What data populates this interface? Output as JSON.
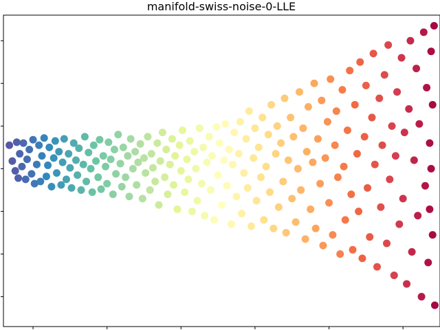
{
  "chart_data": {
    "type": "scatter",
    "title": "manifold-swiss-noise-0-LLE",
    "xlabel": "",
    "ylabel": "",
    "xlim": [
      -0.9,
      5.0
    ],
    "ylim": [
      -3.7,
      3.6
    ],
    "x_ticks": [
      -0.5,
      0.5,
      1.5,
      2.5,
      3.5,
      4.5
    ],
    "y_ticks": [
      -3,
      -2,
      -1,
      0,
      1,
      2,
      3
    ],
    "tick_labels_visible": false,
    "grid": false,
    "colormap": "Spectral",
    "color_stops": [
      "#5e4fa2",
      "#3288bd",
      "#66c2a5",
      "#abdda4",
      "#e6f598",
      "#ffffbf",
      "#fee08b",
      "#fdae61",
      "#f46d43",
      "#d53e4f",
      "#9e0142"
    ],
    "series": [
      {
        "values": [
          [
            -0.82,
            0.55
          ],
          [
            -0.78,
            0.18
          ],
          [
            -0.74,
            -0.05
          ],
          [
            -0.72,
            0.62
          ],
          [
            -0.7,
            -0.22
          ],
          [
            -0.68,
            0.35
          ],
          [
            -0.65,
            0.05
          ],
          [
            -0.63,
            0.6
          ],
          [
            -0.6,
            -0.25
          ],
          [
            -0.58,
            0.22
          ],
          [
            -0.55,
            0.45
          ],
          [
            -0.52,
            -0.12
          ],
          [
            -0.5,
            0.68
          ],
          [
            -0.48,
            -0.35
          ],
          [
            -0.45,
            0.1
          ],
          [
            -0.42,
            0.55
          ],
          [
            -0.4,
            -0.3
          ],
          [
            -0.38,
            0.3
          ],
          [
            -0.35,
            0.72
          ],
          [
            -0.32,
            -0.18
          ],
          [
            -0.3,
            0.08
          ],
          [
            -0.28,
            0.5
          ],
          [
            -0.25,
            -0.42
          ],
          [
            -0.22,
            0.25
          ],
          [
            -0.2,
            0.65
          ],
          [
            -0.18,
            -0.1
          ],
          [
            -0.15,
            0.4
          ],
          [
            -0.12,
            -0.38
          ],
          [
            -0.1,
            0.15
          ],
          [
            -0.08,
            0.7
          ],
          [
            -0.05,
            -0.25
          ],
          [
            -0.02,
            0.35
          ],
          [
            0.0,
            0.02
          ],
          [
            0.02,
            -0.45
          ],
          [
            0.05,
            0.6
          ],
          [
            0.08,
            0.2
          ],
          [
            0.1,
            -0.15
          ],
          [
            0.12,
            0.48
          ],
          [
            0.15,
            -0.5
          ],
          [
            0.18,
            0.1
          ],
          [
            0.2,
            0.75
          ],
          [
            0.22,
            -0.3
          ],
          [
            0.25,
            0.38
          ],
          [
            0.28,
            0.0
          ],
          [
            0.3,
            -0.55
          ],
          [
            0.32,
            0.55
          ],
          [
            0.35,
            0.18
          ],
          [
            0.38,
            -0.2
          ],
          [
            0.4,
            0.68
          ],
          [
            0.42,
            -0.48
          ],
          [
            0.45,
            0.3
          ],
          [
            0.48,
            0.05
          ],
          [
            0.5,
            -0.35
          ],
          [
            0.52,
            0.62
          ],
          [
            0.55,
            0.22
          ],
          [
            0.58,
            -0.6
          ],
          [
            0.6,
            0.45
          ],
          [
            0.62,
            -0.12
          ],
          [
            0.65,
            0.8
          ],
          [
            0.68,
            0.12
          ],
          [
            0.7,
            -0.42
          ],
          [
            0.72,
            0.5
          ],
          [
            0.75,
            -0.2
          ],
          [
            0.78,
            0.3
          ],
          [
            0.8,
            -0.65
          ],
          [
            0.82,
            0.7
          ],
          [
            0.85,
            0.0
          ],
          [
            0.88,
            0.4
          ],
          [
            0.9,
            -0.38
          ],
          [
            0.92,
            0.15
          ],
          [
            0.95,
            0.58
          ],
          [
            0.98,
            -0.7
          ],
          [
            1.0,
            0.25
          ],
          [
            1.02,
            -0.1
          ],
          [
            1.05,
            0.75
          ],
          [
            1.08,
            -0.5
          ],
          [
            1.1,
            0.35
          ],
          [
            1.12,
            0.02
          ],
          [
            1.15,
            -0.3
          ],
          [
            1.18,
            0.6
          ],
          [
            1.2,
            -0.85
          ],
          [
            1.22,
            0.18
          ],
          [
            1.25,
            0.85
          ],
          [
            1.28,
            -0.2
          ],
          [
            1.3,
            0.45
          ],
          [
            1.32,
            -0.6
          ],
          [
            1.35,
            0.1
          ],
          [
            1.38,
            0.7
          ],
          [
            1.4,
            -0.38
          ],
          [
            1.42,
            0.3
          ],
          [
            1.45,
            -0.95
          ],
          [
            1.48,
            0.55
          ],
          [
            1.5,
            -0.05
          ],
          [
            1.52,
            0.9
          ],
          [
            1.55,
            -0.55
          ],
          [
            1.58,
            0.22
          ],
          [
            1.6,
            -0.25
          ],
          [
            1.62,
            0.65
          ],
          [
            1.65,
            -1.0
          ],
          [
            1.68,
            0.4
          ],
          [
            1.7,
            0.0
          ],
          [
            1.72,
            -0.75
          ],
          [
            1.75,
            0.95
          ],
          [
            1.78,
            -0.35
          ],
          [
            1.8,
            0.5
          ],
          [
            1.82,
            -1.1
          ],
          [
            1.85,
            0.15
          ],
          [
            1.88,
            0.75
          ],
          [
            1.9,
            -0.5
          ],
          [
            1.92,
            0.3
          ],
          [
            1.95,
            -1.2
          ],
          [
            1.98,
            0.98
          ],
          [
            2.0,
            -0.15
          ],
          [
            2.02,
            0.6
          ],
          [
            2.05,
            -0.85
          ],
          [
            2.08,
            0.2
          ],
          [
            2.1,
            1.05
          ],
          [
            2.12,
            -0.4
          ],
          [
            2.15,
            0.45
          ],
          [
            2.18,
            -1.3
          ],
          [
            2.2,
            0.1
          ],
          [
            2.22,
            0.85
          ],
          [
            2.25,
            -0.65
          ],
          [
            2.28,
            0.35
          ],
          [
            2.3,
            1.1
          ],
          [
            2.32,
            -1.05
          ],
          [
            2.35,
            -0.1
          ],
          [
            2.38,
            0.7
          ],
          [
            2.4,
            -0.45
          ],
          [
            2.42,
            1.35
          ],
          [
            2.45,
            -1.35
          ],
          [
            2.48,
            0.25
          ],
          [
            2.5,
            0.95
          ],
          [
            2.52,
            -0.75
          ],
          [
            2.55,
            0.5
          ],
          [
            2.58,
            -0.2
          ],
          [
            2.6,
            1.2
          ],
          [
            2.62,
            -1.2
          ],
          [
            2.65,
            0.05
          ],
          [
            2.68,
            0.8
          ],
          [
            2.7,
            -0.55
          ],
          [
            2.72,
            1.5
          ],
          [
            2.75,
            -1.4
          ],
          [
            2.78,
            0.35
          ],
          [
            2.8,
            1.0
          ],
          [
            2.82,
            -0.9
          ],
          [
            2.85,
            0.6
          ],
          [
            2.88,
            -0.3
          ],
          [
            2.9,
            1.65
          ],
          [
            2.92,
            -1.5
          ],
          [
            2.95,
            0.2
          ],
          [
            2.98,
            1.2
          ],
          [
            3.0,
            -0.7
          ],
          [
            3.02,
            0.75
          ],
          [
            3.05,
            -1.25
          ],
          [
            3.08,
            0.0
          ],
          [
            3.1,
            1.8
          ],
          [
            3.12,
            -0.5
          ],
          [
            3.15,
            0.95
          ],
          [
            3.18,
            -1.65
          ],
          [
            3.2,
            0.4
          ],
          [
            3.22,
            1.45
          ],
          [
            3.25,
            -0.95
          ],
          [
            3.28,
            0.15
          ],
          [
            3.3,
            2.0
          ],
          [
            3.32,
            -1.4
          ],
          [
            3.35,
            0.7
          ],
          [
            3.38,
            -0.35
          ],
          [
            3.4,
            1.6
          ],
          [
            3.42,
            -1.8
          ],
          [
            3.45,
            0.25
          ],
          [
            3.48,
            1.1
          ],
          [
            3.5,
            -0.8
          ],
          [
            3.52,
            2.1
          ],
          [
            3.55,
            -1.55
          ],
          [
            3.58,
            0.55
          ],
          [
            3.6,
            1.35
          ],
          [
            3.62,
            -0.2
          ],
          [
            3.65,
            -2.0
          ],
          [
            3.68,
            1.85
          ],
          [
            3.7,
            0.05
          ],
          [
            3.72,
            -1.2
          ],
          [
            3.75,
            0.9
          ],
          [
            3.78,
            2.3
          ],
          [
            3.8,
            -0.6
          ],
          [
            3.82,
            -1.9
          ],
          [
            3.85,
            1.5
          ],
          [
            3.88,
            0.35
          ],
          [
            3.9,
            -1.0
          ],
          [
            3.92,
            2.5
          ],
          [
            3.95,
            -2.1
          ],
          [
            3.98,
            0.75
          ],
          [
            4.0,
            1.95
          ],
          [
            4.02,
            -0.45
          ],
          [
            4.05,
            -1.6
          ],
          [
            4.08,
            1.2
          ],
          [
            4.1,
            2.7
          ],
          [
            4.12,
            0.1
          ],
          [
            4.15,
            -2.3
          ],
          [
            4.18,
            1.65
          ],
          [
            4.2,
            -0.9
          ],
          [
            4.22,
            0.55
          ],
          [
            4.25,
            2.2
          ],
          [
            4.28,
            -1.75
          ],
          [
            4.3,
            2.9
          ],
          [
            4.32,
            -0.25
          ],
          [
            4.35,
            1.0
          ],
          [
            4.38,
            -2.5
          ],
          [
            4.4,
            0.3
          ],
          [
            4.42,
            1.8
          ],
          [
            4.45,
            -1.3
          ],
          [
            4.48,
            2.6
          ],
          [
            4.5,
            -0.7
          ],
          [
            4.52,
            0.85
          ],
          [
            4.55,
            -2.7
          ],
          [
            4.58,
            1.4
          ],
          [
            4.6,
            3.0
          ],
          [
            4.62,
            -1.95
          ],
          [
            4.65,
            0.2
          ],
          [
            4.68,
            2.35
          ],
          [
            4.7,
            -1.1
          ],
          [
            4.72,
            1.05
          ],
          [
            4.75,
            -3.0
          ],
          [
            4.78,
            3.2
          ],
          [
            4.8,
            -0.4
          ],
          [
            4.82,
            1.9
          ],
          [
            4.84,
            -2.2
          ],
          [
            4.86,
            0.6
          ],
          [
            4.88,
            2.75
          ],
          [
            4.9,
            -1.55
          ],
          [
            4.92,
            3.35
          ],
          [
            4.86,
            -0.95
          ],
          [
            4.9,
            1.5
          ],
          [
            4.93,
            -3.2
          ],
          [
            4.88,
            0.0
          ]
        ]
      }
    ]
  }
}
